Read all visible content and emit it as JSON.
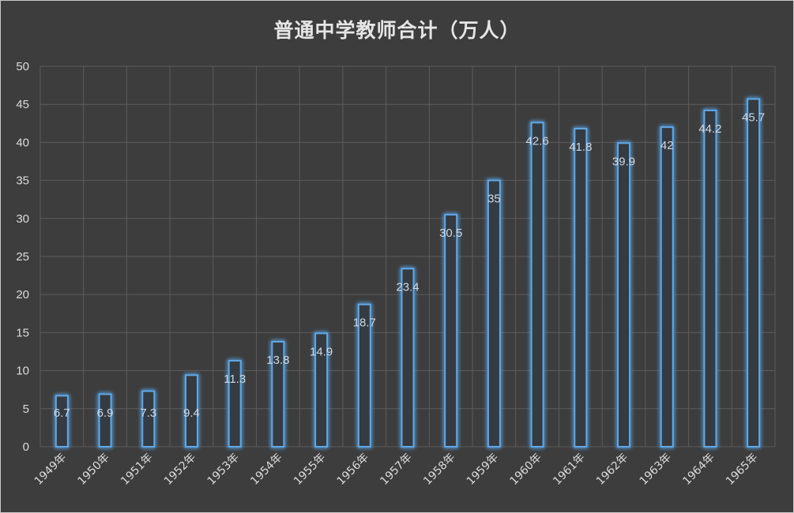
{
  "chart_data": {
    "type": "bar",
    "title": "普通中学教师合计（万人）",
    "xlabel": "",
    "ylabel": "",
    "ylim": [
      0,
      50
    ],
    "yticks": [
      0,
      5,
      10,
      15,
      20,
      25,
      30,
      35,
      40,
      45,
      50
    ],
    "grid": true,
    "data_labels": true,
    "categories": [
      "1949年",
      "1950年",
      "1951年",
      "1952年",
      "1953年",
      "1954年",
      "1955年",
      "1956年",
      "1957年",
      "1958年",
      "1959年",
      "1960年",
      "1961年",
      "1962年",
      "1963年",
      "1964年",
      "1965年"
    ],
    "values": [
      6.7,
      6.9,
      7.3,
      9.4,
      11.3,
      13.8,
      14.9,
      18.7,
      23.4,
      30.5,
      35,
      42.6,
      41.8,
      39.9,
      42,
      44.2,
      45.7
    ],
    "colors": {
      "background": "#3d3d3d",
      "bar_stroke": "#5fa8e8",
      "bar_fill": "#353a40",
      "grid": "#5c5c5c",
      "text": "#dcdcdc"
    }
  }
}
